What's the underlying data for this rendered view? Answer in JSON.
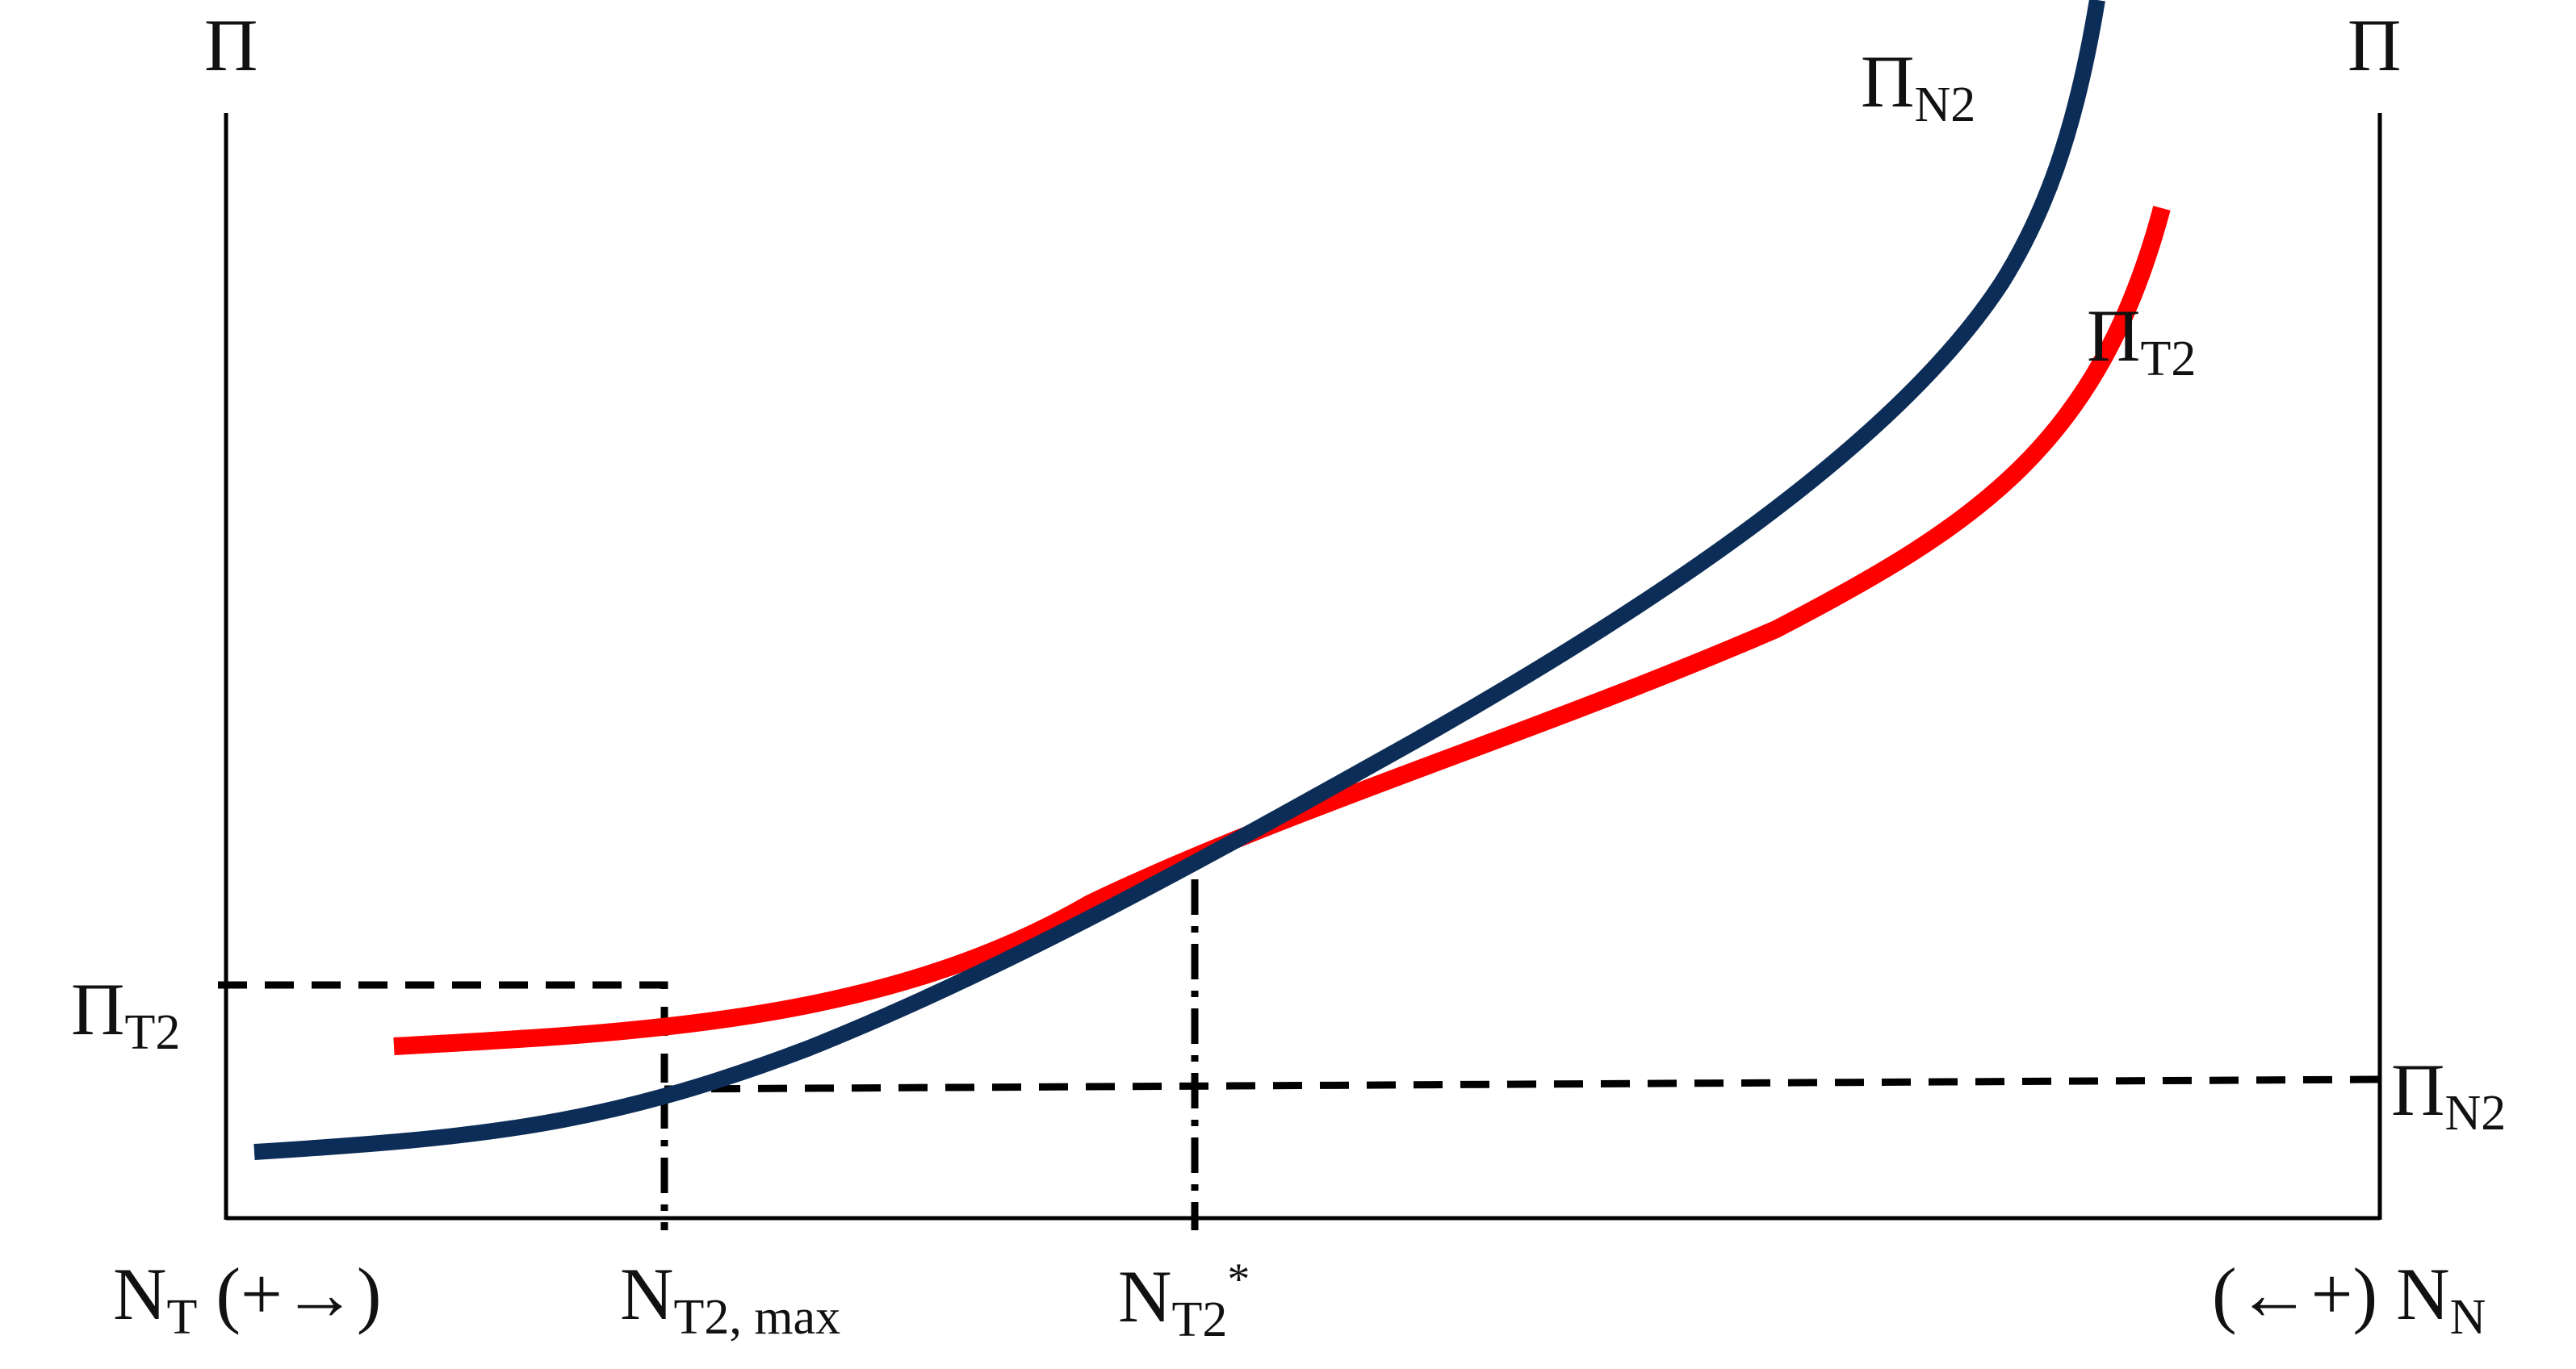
{
  "labels": {
    "left_axis_title": "Π",
    "right_axis_title": "Π",
    "curve_n2_label": {
      "main": "Π",
      "sub": "N2"
    },
    "curve_t2_label": {
      "main": "Π",
      "sub": "T2"
    },
    "left_y_tick": {
      "main": "Π",
      "sub": "T2"
    },
    "right_y_tick": {
      "main": "Π",
      "sub": "N2"
    },
    "x_left": {
      "main": "N",
      "sub": "T",
      "suffix": " (+→)"
    },
    "x_tick_max": {
      "main": "N",
      "sub": "T2, max"
    },
    "x_tick_star": {
      "main": "N",
      "sub": "T2",
      "sup": "*"
    },
    "x_right": {
      "prefix": "(←+) ",
      "main": "N",
      "sub": "N"
    }
  },
  "colors": {
    "curve_n2": "#0c2d57",
    "curve_t2": "#ff0000",
    "axes": "#000000",
    "guides": "#000000"
  }
}
